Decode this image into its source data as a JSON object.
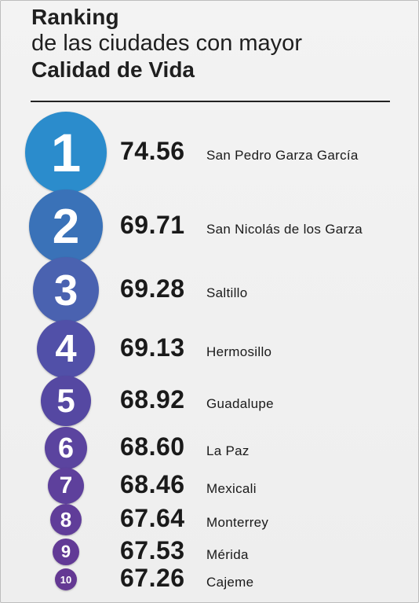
{
  "header": {
    "line1": "Ranking",
    "line2": "de las ciudades con mayor",
    "line3": "Calidad de Vida"
  },
  "chart_data": {
    "type": "table",
    "columns": [
      "rank",
      "value",
      "city"
    ],
    "rows": [
      {
        "rank": "1",
        "value": "74.56",
        "city": "San Pedro Garza García",
        "color": "#2b8ccc"
      },
      {
        "rank": "2",
        "value": "69.71",
        "city": "San Nicolás de los Garza",
        "color": "#3a72b8"
      },
      {
        "rank": "3",
        "value": "69.28",
        "city": "Saltillo",
        "color": "#4a62b0"
      },
      {
        "rank": "4",
        "value": "69.13",
        "city": "Hermosillo",
        "color": "#5150a8"
      },
      {
        "rank": "5",
        "value": "68.92",
        "city": "Guadalupe",
        "color": "#5548a2"
      },
      {
        "rank": "6",
        "value": "68.60",
        "city": "La Paz",
        "color": "#5b449f"
      },
      {
        "rank": "7",
        "value": "68.46",
        "city": "Mexicali",
        "color": "#5e409c"
      },
      {
        "rank": "8",
        "value": "67.64",
        "city": "Monterrey",
        "color": "#603d99"
      },
      {
        "rank": "9",
        "value": "67.53",
        "city": "Mérida",
        "color": "#623a96"
      },
      {
        "rank": "10",
        "value": "67.26",
        "city": "Cajeme",
        "color": "#643893"
      }
    ]
  }
}
